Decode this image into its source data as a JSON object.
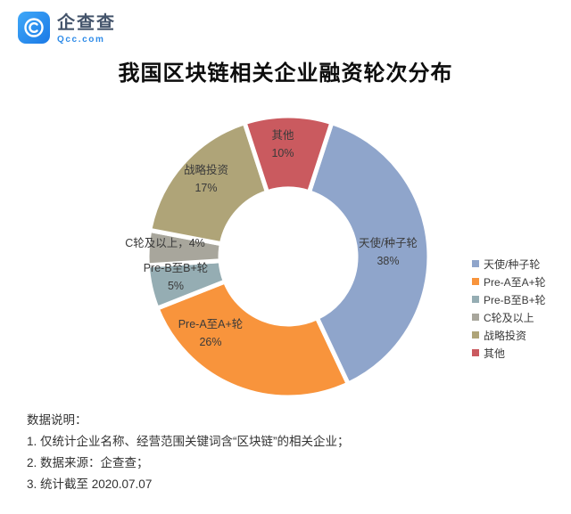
{
  "brand": {
    "name": "企查查",
    "domain": "Qcc.com",
    "icon": "qcc-spiral-icon",
    "color": "#2B8DEB"
  },
  "title": "我国区块链相关企业融资轮次分布",
  "chart_data": {
    "type": "pie",
    "subtype": "donut",
    "title": "我国区块链相关企业融资轮次分布",
    "categories": [
      "天使/种子轮",
      "Pre-A至A+轮",
      "Pre-B至B+轮",
      "C轮及以上",
      "战略投资",
      "其他"
    ],
    "values": [
      38,
      26,
      5,
      4,
      17,
      10
    ],
    "unit": "%",
    "colors": [
      "#8FA5CB",
      "#F8943C",
      "#95ADB3",
      "#A8A69C",
      "#AFA478",
      "#CA5A5F"
    ],
    "start_angle_deg": 18,
    "direction": "clockwise",
    "inner_radius_ratio": 0.48,
    "legend_position": "right",
    "data_labels": [
      "天使/种子轮 38%",
      "Pre-A至A+轮 26%",
      "Pre-B至B+轮 5%",
      "C轮及以上，4%",
      "战略投资 17%",
      "其他 10%"
    ]
  },
  "slice_labels": [
    {
      "name": "天使/种子轮",
      "pct": "38%"
    },
    {
      "name": "Pre-A至A+轮",
      "pct": "26%"
    },
    {
      "name": "Pre-B至B+轮",
      "pct": "5%"
    },
    {
      "combined": "C轮及以上，4%"
    },
    {
      "name": "战略投资",
      "pct": "17%"
    },
    {
      "name": "其他",
      "pct": "10%"
    }
  ],
  "legend": {
    "items": [
      {
        "label": "天使/种子轮",
        "color": "#8FA5CB"
      },
      {
        "label": "Pre-A至A+轮",
        "color": "#F8943C"
      },
      {
        "label": "Pre-B至B+轮",
        "color": "#95ADB3"
      },
      {
        "label": "C轮及以上",
        "color": "#A8A69C"
      },
      {
        "label": "战略投资",
        "color": "#AFA478"
      },
      {
        "label": "其他",
        "color": "#CA5A5F"
      }
    ]
  },
  "notes": {
    "heading": "数据说明：",
    "items": [
      "1. 仅统计企业名称、经营范围关键词含“区块链”的相关企业；",
      "2. 数据来源：企查查；",
      "3. 统计截至 2020.07.07"
    ]
  }
}
